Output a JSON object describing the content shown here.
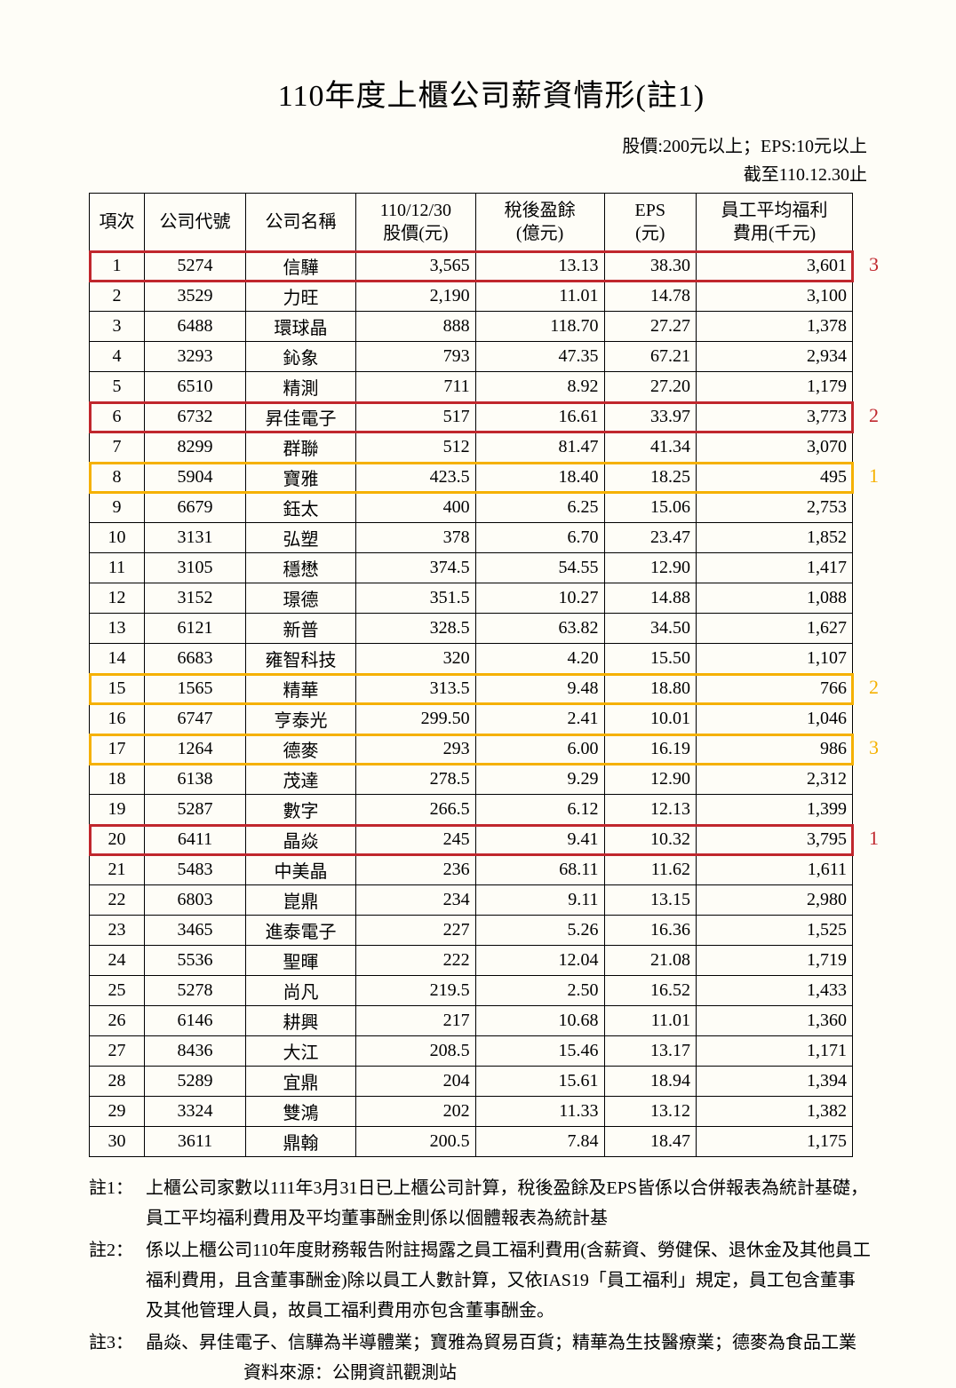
{
  "title": "110年度上櫃公司薪資情形(註1)",
  "subhead_line1": "股價:200元以上；EPS:10元以上",
  "subhead_line2": "截至110.12.30止",
  "columns": {
    "idx": "項次",
    "code": "公司代號",
    "name": "公司名稱",
    "price": "110/12/30\n股價(元)",
    "earn": "稅後盈餘\n(億元)",
    "eps": "EPS\n(元)",
    "welfare": "員工平均福利\n費用(千元)"
  },
  "rows": [
    {
      "idx": "1",
      "code": "5274",
      "name": "信驊",
      "price": "3,565",
      "earn": "13.13",
      "eps": "38.30",
      "welf": "3,601",
      "hl": "red",
      "rank": "3",
      "rank_color": "red"
    },
    {
      "idx": "2",
      "code": "3529",
      "name": "力旺",
      "price": "2,190",
      "earn": "11.01",
      "eps": "14.78",
      "welf": "3,100"
    },
    {
      "idx": "3",
      "code": "6488",
      "name": "環球晶",
      "price": "888",
      "earn": "118.70",
      "eps": "27.27",
      "welf": "1,378"
    },
    {
      "idx": "4",
      "code": "3293",
      "name": "鈊象",
      "price": "793",
      "earn": "47.35",
      "eps": "67.21",
      "welf": "2,934"
    },
    {
      "idx": "5",
      "code": "6510",
      "name": "精測",
      "price": "711",
      "earn": "8.92",
      "eps": "27.20",
      "welf": "1,179"
    },
    {
      "idx": "6",
      "code": "6732",
      "name": "昇佳電子",
      "price": "517",
      "earn": "16.61",
      "eps": "33.97",
      "welf": "3,773",
      "hl": "red",
      "rank": "2",
      "rank_color": "red"
    },
    {
      "idx": "7",
      "code": "8299",
      "name": "群聯",
      "price": "512",
      "earn": "81.47",
      "eps": "41.34",
      "welf": "3,070"
    },
    {
      "idx": "8",
      "code": "5904",
      "name": "寶雅",
      "price": "423.5",
      "earn": "18.40",
      "eps": "18.25",
      "welf": "495",
      "hl": "yel",
      "rank": "1",
      "rank_color": "yel"
    },
    {
      "idx": "9",
      "code": "6679",
      "name": "鈺太",
      "price": "400",
      "earn": "6.25",
      "eps": "15.06",
      "welf": "2,753"
    },
    {
      "idx": "10",
      "code": "3131",
      "name": "弘塑",
      "price": "378",
      "earn": "6.70",
      "eps": "23.47",
      "welf": "1,852"
    },
    {
      "idx": "11",
      "code": "3105",
      "name": "穩懋",
      "price": "374.5",
      "earn": "54.55",
      "eps": "12.90",
      "welf": "1,417"
    },
    {
      "idx": "12",
      "code": "3152",
      "name": "璟德",
      "price": "351.5",
      "earn": "10.27",
      "eps": "14.88",
      "welf": "1,088"
    },
    {
      "idx": "13",
      "code": "6121",
      "name": "新普",
      "price": "328.5",
      "earn": "63.82",
      "eps": "34.50",
      "welf": "1,627"
    },
    {
      "idx": "14",
      "code": "6683",
      "name": "雍智科技",
      "price": "320",
      "earn": "4.20",
      "eps": "15.50",
      "welf": "1,107"
    },
    {
      "idx": "15",
      "code": "1565",
      "name": "精華",
      "price": "313.5",
      "earn": "9.48",
      "eps": "18.80",
      "welf": "766",
      "hl": "yel",
      "rank": "2",
      "rank_color": "yel"
    },
    {
      "idx": "16",
      "code": "6747",
      "name": "亨泰光",
      "price": "299.50",
      "earn": "2.41",
      "eps": "10.01",
      "welf": "1,046"
    },
    {
      "idx": "17",
      "code": "1264",
      "name": "德麥",
      "price": "293",
      "earn": "6.00",
      "eps": "16.19",
      "welf": "986",
      "hl": "yel",
      "rank": "3",
      "rank_color": "yel"
    },
    {
      "idx": "18",
      "code": "6138",
      "name": "茂達",
      "price": "278.5",
      "earn": "9.29",
      "eps": "12.90",
      "welf": "2,312"
    },
    {
      "idx": "19",
      "code": "5287",
      "name": "數字",
      "price": "266.5",
      "earn": "6.12",
      "eps": "12.13",
      "welf": "1,399"
    },
    {
      "idx": "20",
      "code": "6411",
      "name": "晶焱",
      "price": "245",
      "earn": "9.41",
      "eps": "10.32",
      "welf": "3,795",
      "hl": "red",
      "rank": "1",
      "rank_color": "red"
    },
    {
      "idx": "21",
      "code": "5483",
      "name": "中美晶",
      "price": "236",
      "earn": "68.11",
      "eps": "11.62",
      "welf": "1,611"
    },
    {
      "idx": "22",
      "code": "6803",
      "name": "崑鼎",
      "price": "234",
      "earn": "9.11",
      "eps": "13.15",
      "welf": "2,980"
    },
    {
      "idx": "23",
      "code": "3465",
      "name": "進泰電子",
      "price": "227",
      "earn": "5.26",
      "eps": "16.36",
      "welf": "1,525"
    },
    {
      "idx": "24",
      "code": "5536",
      "name": "聖暉",
      "price": "222",
      "earn": "12.04",
      "eps": "21.08",
      "welf": "1,719"
    },
    {
      "idx": "25",
      "code": "5278",
      "name": "尚凡",
      "price": "219.5",
      "earn": "2.50",
      "eps": "16.52",
      "welf": "1,433"
    },
    {
      "idx": "26",
      "code": "6146",
      "name": "耕興",
      "price": "217",
      "earn": "10.68",
      "eps": "11.01",
      "welf": "1,360"
    },
    {
      "idx": "27",
      "code": "8436",
      "name": "大江",
      "price": "208.5",
      "earn": "15.46",
      "eps": "13.17",
      "welf": "1,171"
    },
    {
      "idx": "28",
      "code": "5289",
      "name": "宜鼎",
      "price": "204",
      "earn": "15.61",
      "eps": "18.94",
      "welf": "1,394"
    },
    {
      "idx": "29",
      "code": "3324",
      "name": "雙鴻",
      "price": "202",
      "earn": "11.33",
      "eps": "13.12",
      "welf": "1,382"
    },
    {
      "idx": "30",
      "code": "3611",
      "name": "鼎翰",
      "price": "200.5",
      "earn": "7.84",
      "eps": "18.47",
      "welf": "1,175"
    }
  ],
  "notes": [
    {
      "label": "註1：",
      "body": "上櫃公司家數以111年3月31日已上櫃公司計算，稅後盈餘及EPS皆係以合併報表為統計基礎，員工平均福利費用及平均董事酬金則係以個體報表為統計基"
    },
    {
      "label": "註2：",
      "body": "係以上櫃公司110年度財務報告附註揭露之員工福利費用(含薪資、勞健保、退休金及其他員工福利費用，且含董事酬金)除以員工人數計算，又依IAS19「員工福利」規定，員工包含董事及其他管理人員，故員工福利費用亦包含董事酬金。"
    },
    {
      "label": "註3：",
      "body": "晶焱、昇佳電子、信驊為半導體業；寶雅為貿易百貨；精華為生技醫療業；德麥為食品工業"
    }
  ],
  "source": "資料來源：公開資訊觀測站",
  "colors": {
    "background": "#fefdf7",
    "text": "#000000",
    "highlight_red": "#c0272d",
    "highlight_yellow": "#f5b100"
  }
}
